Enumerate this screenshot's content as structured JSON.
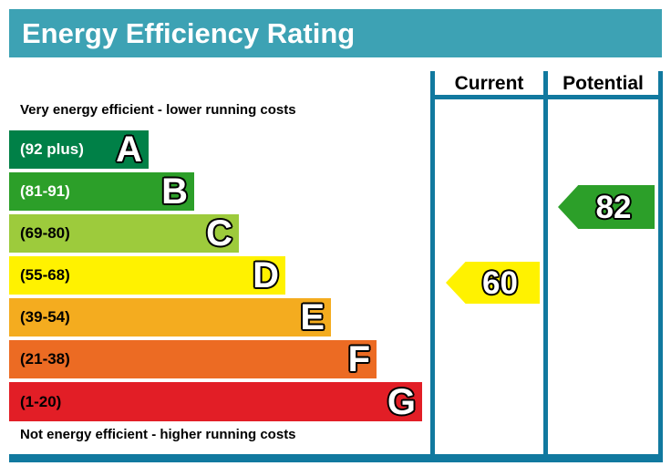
{
  "title": "Energy Efficiency Rating",
  "colors": {
    "title_bg": "#3DA2B4",
    "title_text": "#FFFFFF",
    "border": "#11799F"
  },
  "captions": {
    "top": "Very energy efficient - lower running costs",
    "bottom": "Not energy efficient - higher running costs"
  },
  "columns": {
    "current_label": "Current",
    "potential_label": "Potential"
  },
  "chart_data": {
    "type": "bar",
    "title": "Energy Efficiency Rating",
    "bands": [
      {
        "letter": "A",
        "range_label": "(92 plus)",
        "range_min": 92,
        "range_max": 100,
        "color": "#008047"
      },
      {
        "letter": "B",
        "range_label": "(81-91)",
        "range_min": 81,
        "range_max": 91,
        "color": "#2C9F29"
      },
      {
        "letter": "C",
        "range_label": "(69-80)",
        "range_min": 69,
        "range_max": 80,
        "color": "#9DCB3C"
      },
      {
        "letter": "D",
        "range_label": "(55-68)",
        "range_min": 55,
        "range_max": 68,
        "color": "#FFF200"
      },
      {
        "letter": "E",
        "range_label": "(39-54)",
        "range_min": 39,
        "range_max": 54,
        "color": "#F4AC1F"
      },
      {
        "letter": "F",
        "range_label": "(21-38)",
        "range_min": 21,
        "range_max": 38,
        "color": "#EC6B23"
      },
      {
        "letter": "G",
        "range_label": "(1-20)",
        "range_min": 1,
        "range_max": 20,
        "color": "#E21E26"
      }
    ],
    "markers": {
      "current": {
        "value": 60,
        "band": "D",
        "color": "#FFF200"
      },
      "potential": {
        "value": 82,
        "band": "B",
        "color": "#2C9F29"
      }
    }
  }
}
